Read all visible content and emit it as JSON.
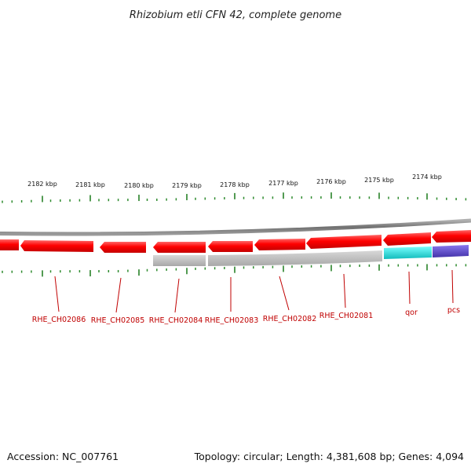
{
  "title": "Rhizobium etli CFN 42, complete genome",
  "footer": {
    "accession": "Accession: NC_007761",
    "summary": "Topology: circular; Length: 4,381,608 bp; Genes: 4,094"
  },
  "ruler": {
    "ticks": [
      "2182 kbp",
      "2181 kbp",
      "2180 kbp",
      "2179 kbp",
      "2178 kbp",
      "2177 kbp",
      "2176 kbp",
      "2175 kbp",
      "2174 kbp"
    ],
    "major_color": "#1a7a1a",
    "minor_color": "#2e8b2e"
  },
  "genes": {
    "labels": [
      "RHE_CH02086",
      "RHE_CH02085",
      "RHE_CH02084",
      "RHE_CH02083",
      "RHE_CH02082",
      "RHE_CH02081",
      "qor",
      "pcs"
    ],
    "colors": {
      "cds": "#ff0000",
      "cds_shade": "#c80000",
      "backbone": "#808080",
      "rna_gray": "#bdbdbd",
      "qor": "#22dddd",
      "pcs": "#6655cc",
      "label": "#c00000"
    }
  }
}
